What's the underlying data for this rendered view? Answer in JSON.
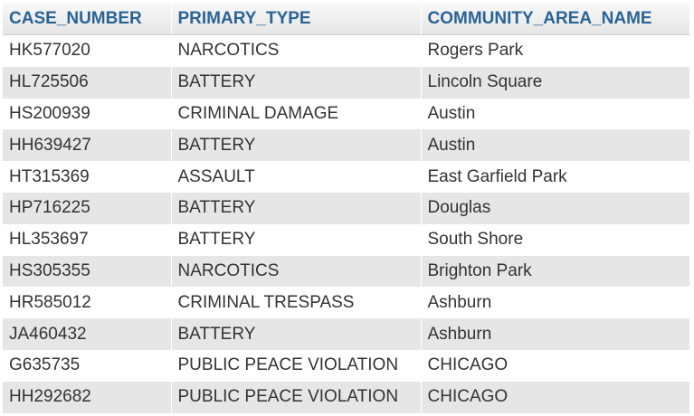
{
  "table": {
    "columns": [
      "CASE_NUMBER",
      "PRIMARY_TYPE",
      "COMMUNITY_AREA_NAME"
    ],
    "rows": [
      [
        "HK577020",
        "NARCOTICS",
        "Rogers Park"
      ],
      [
        "HL725506",
        "BATTERY",
        "Lincoln Square"
      ],
      [
        "HS200939",
        "CRIMINAL DAMAGE",
        "Austin"
      ],
      [
        "HH639427",
        "BATTERY",
        "Austin"
      ],
      [
        "HT315369",
        "ASSAULT",
        "East Garfield Park"
      ],
      [
        "HP716225",
        "BATTERY",
        "Douglas"
      ],
      [
        "HL353697",
        "BATTERY",
        "South Shore"
      ],
      [
        "HS305355",
        "NARCOTICS",
        "Brighton Park"
      ],
      [
        "HR585012",
        "CRIMINAL TRESPASS",
        "Ashburn"
      ],
      [
        "JA460432",
        "BATTERY",
        "Ashburn"
      ],
      [
        "G635735",
        "PUBLIC PEACE VIOLATION",
        "CHICAGO"
      ],
      [
        "HH292682",
        "PUBLIC PEACE VIOLATION",
        "CHICAGO"
      ]
    ]
  },
  "colors": {
    "header_text": "#2a6496",
    "cell_text": "#333333",
    "row_stripe": "#e6e6e6"
  }
}
